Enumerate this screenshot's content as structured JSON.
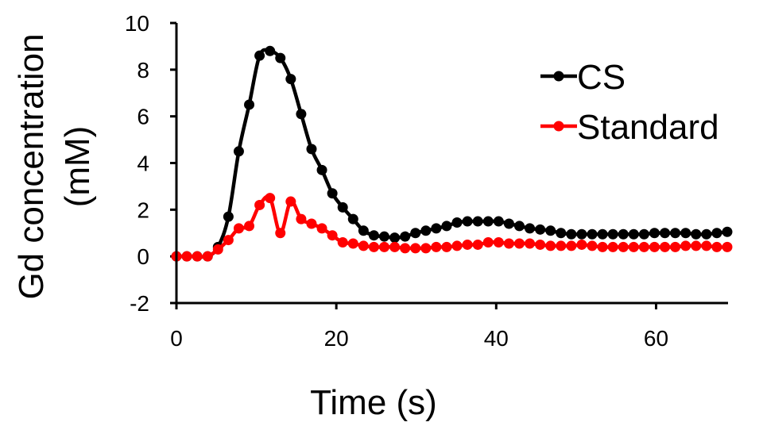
{
  "chart_data": {
    "type": "line",
    "xlabel": "Time (s)",
    "ylabel": [
      "Gd concentration",
      "(mM)"
    ],
    "xlim": [
      0,
      69
    ],
    "ylim": [
      -2,
      10
    ],
    "xticks": [
      0,
      20,
      40,
      60
    ],
    "yticks": [
      -2,
      0,
      2,
      4,
      6,
      8,
      10
    ],
    "grid": false,
    "legend": "top-right",
    "series": [
      {
        "name": "CS",
        "color": "#000000",
        "x": [
          0,
          1.3,
          2.6,
          3.9,
          5.2,
          6.5,
          7.8,
          9.1,
          10.4,
          11.7,
          13,
          14.3,
          15.6,
          16.9,
          18.2,
          19.5,
          20.8,
          22.1,
          23.4,
          24.7,
          26,
          27.3,
          28.6,
          29.9,
          31.2,
          32.5,
          33.8,
          35.1,
          36.4,
          37.7,
          39,
          40.3,
          41.6,
          42.9,
          44.2,
          45.5,
          46.8,
          48.1,
          49.4,
          50.7,
          52,
          53.3,
          54.6,
          55.9,
          57.2,
          58.5,
          59.8,
          61.1,
          62.4,
          63.7,
          65,
          66.3,
          67.6,
          68.9
        ],
        "y": [
          0.0,
          0.0,
          0.0,
          0.0,
          0.4,
          1.7,
          4.5,
          6.5,
          8.6,
          8.8,
          8.5,
          7.6,
          6.1,
          4.6,
          3.7,
          2.7,
          2.1,
          1.6,
          1.1,
          0.9,
          0.85,
          0.8,
          0.85,
          1.0,
          1.1,
          1.2,
          1.3,
          1.45,
          1.5,
          1.5,
          1.5,
          1.5,
          1.4,
          1.3,
          1.2,
          1.15,
          1.1,
          1.0,
          0.95,
          0.95,
          0.95,
          0.95,
          0.95,
          0.95,
          0.95,
          0.95,
          1.0,
          1.0,
          1.0,
          1.0,
          0.95,
          0.95,
          1.0,
          1.05
        ]
      },
      {
        "name": "Standard",
        "color": "#ff0000",
        "x": [
          0,
          1.3,
          2.6,
          3.9,
          5.2,
          6.5,
          7.8,
          9.1,
          10.4,
          11.7,
          13,
          14.3,
          15.6,
          16.9,
          18.2,
          19.5,
          20.8,
          22.1,
          23.4,
          24.7,
          26,
          27.3,
          28.6,
          29.9,
          31.2,
          32.5,
          33.8,
          35.1,
          36.4,
          37.7,
          39,
          40.3,
          41.6,
          42.9,
          44.2,
          45.5,
          46.8,
          48.1,
          49.4,
          50.7,
          52,
          53.3,
          54.6,
          55.9,
          57.2,
          58.5,
          59.8,
          61.1,
          62.4,
          63.7,
          65,
          66.3,
          67.6,
          68.9
        ],
        "y": [
          0.0,
          0.0,
          0.0,
          0.0,
          0.3,
          0.7,
          1.2,
          1.3,
          2.2,
          2.5,
          1.0,
          2.35,
          1.6,
          1.4,
          1.2,
          0.9,
          0.6,
          0.55,
          0.45,
          0.4,
          0.4,
          0.4,
          0.35,
          0.35,
          0.35,
          0.4,
          0.4,
          0.45,
          0.5,
          0.5,
          0.6,
          0.6,
          0.55,
          0.55,
          0.55,
          0.5,
          0.45,
          0.45,
          0.45,
          0.5,
          0.45,
          0.4,
          0.4,
          0.4,
          0.4,
          0.4,
          0.4,
          0.4,
          0.4,
          0.45,
          0.45,
          0.45,
          0.4,
          0.4
        ]
      }
    ]
  }
}
